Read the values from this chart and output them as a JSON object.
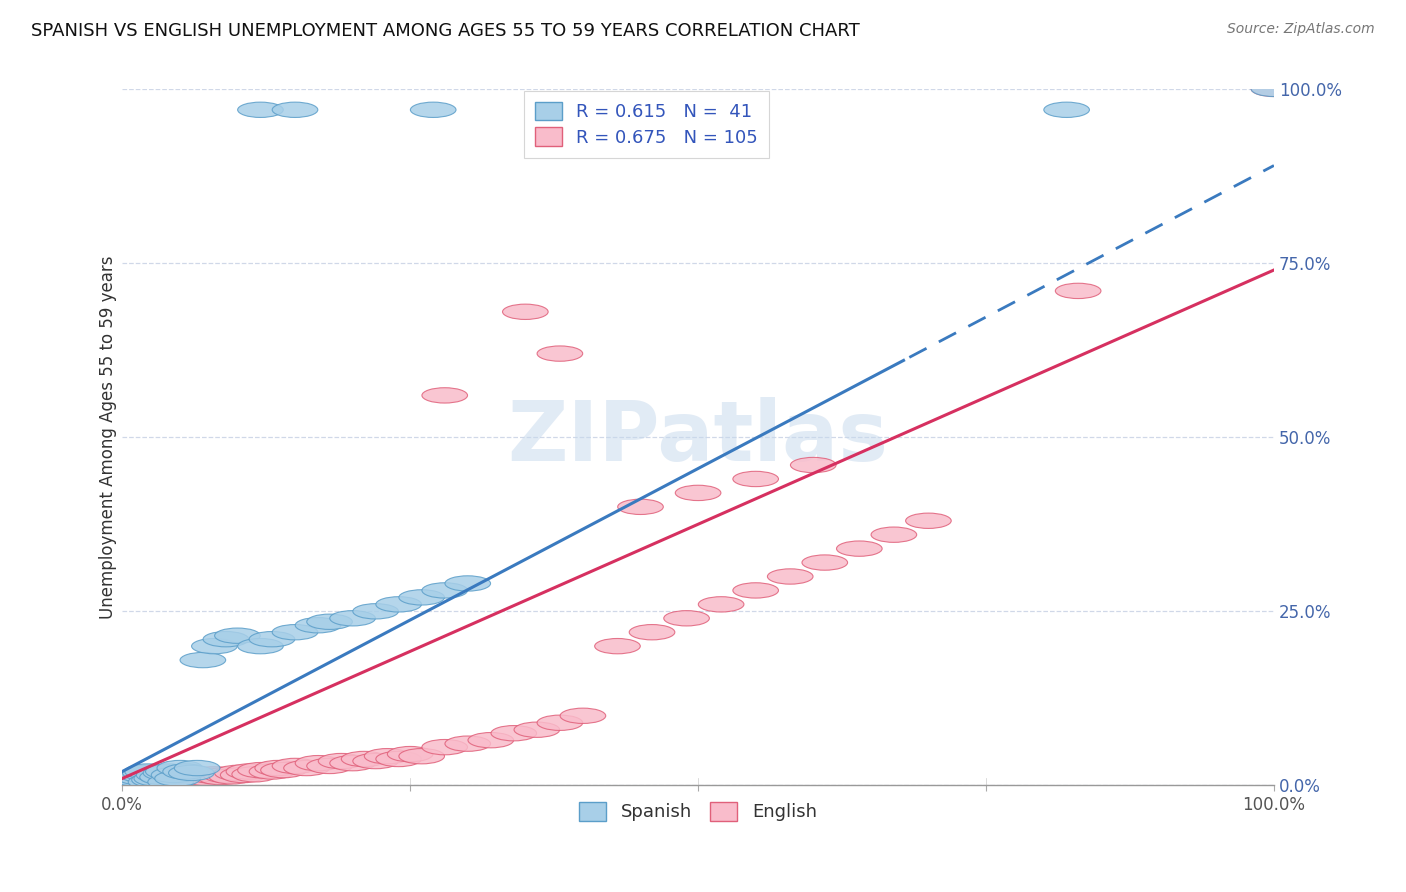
{
  "title": "SPANISH VS ENGLISH UNEMPLOYMENT AMONG AGES 55 TO 59 YEARS CORRELATION CHART",
  "source": "Source: ZipAtlas.com",
  "ylabel": "Unemployment Among Ages 55 to 59 years",
  "ytick_labels": [
    "0.0%",
    "25.0%",
    "50.0%",
    "75.0%",
    "100.0%"
  ],
  "ytick_positions": [
    0,
    0.25,
    0.5,
    0.75,
    1.0
  ],
  "xlim": [
    0,
    1.0
  ],
  "ylim": [
    0,
    1.0
  ],
  "spanish_R": 0.615,
  "spanish_N": 41,
  "english_R": 0.675,
  "english_N": 105,
  "spanish_color": "#a8cfe8",
  "english_color": "#f9bccb",
  "spanish_edge_color": "#5b9ec9",
  "english_edge_color": "#e0607a",
  "spanish_line_color": "#3a7abf",
  "english_line_color": "#d63060",
  "watermark_text": "ZIPatlas",
  "background_color": "#ffffff",
  "grid_color": "#d0d8e8",
  "spanish_line_slope": 0.87,
  "spanish_line_intercept": 0.02,
  "english_line_slope": 0.73,
  "english_line_intercept": 0.01,
  "spanish_dash_cutoff": 0.68,
  "spanish_scatter_x": [
    0.005,
    0.01,
    0.012,
    0.015,
    0.018,
    0.02,
    0.022,
    0.025,
    0.028,
    0.03,
    0.032,
    0.035,
    0.038,
    0.04,
    0.042,
    0.045,
    0.048,
    0.05,
    0.055,
    0.06,
    0.065,
    0.07,
    0.08,
    0.09,
    0.1,
    0.12,
    0.13,
    0.15,
    0.17,
    0.18,
    0.2,
    0.22,
    0.24,
    0.26,
    0.28,
    0.3,
    0.12,
    0.15,
    0.27,
    0.82,
    1.0
  ],
  "spanish_scatter_y": [
    0.005,
    0.008,
    0.01,
    0.012,
    0.015,
    0.018,
    0.02,
    0.005,
    0.008,
    0.01,
    0.015,
    0.012,
    0.018,
    0.02,
    0.005,
    0.015,
    0.01,
    0.025,
    0.02,
    0.018,
    0.025,
    0.18,
    0.2,
    0.21,
    0.215,
    0.2,
    0.21,
    0.22,
    0.23,
    0.235,
    0.24,
    0.25,
    0.26,
    0.27,
    0.28,
    0.29,
    0.97,
    0.97,
    0.97,
    0.97,
    1.0
  ],
  "english_scatter_x": [
    0.002,
    0.004,
    0.005,
    0.006,
    0.008,
    0.009,
    0.01,
    0.011,
    0.012,
    0.013,
    0.014,
    0.015,
    0.016,
    0.017,
    0.018,
    0.019,
    0.02,
    0.021,
    0.022,
    0.023,
    0.024,
    0.025,
    0.026,
    0.027,
    0.028,
    0.029,
    0.03,
    0.032,
    0.033,
    0.034,
    0.035,
    0.036,
    0.038,
    0.039,
    0.04,
    0.041,
    0.042,
    0.043,
    0.045,
    0.046,
    0.048,
    0.05,
    0.052,
    0.054,
    0.055,
    0.058,
    0.06,
    0.062,
    0.064,
    0.066,
    0.068,
    0.07,
    0.072,
    0.075,
    0.078,
    0.08,
    0.085,
    0.09,
    0.095,
    0.1,
    0.105,
    0.11,
    0.115,
    0.12,
    0.13,
    0.135,
    0.14,
    0.15,
    0.16,
    0.17,
    0.18,
    0.19,
    0.2,
    0.21,
    0.22,
    0.23,
    0.24,
    0.25,
    0.26,
    0.28,
    0.3,
    0.32,
    0.34,
    0.36,
    0.38,
    0.4,
    0.43,
    0.46,
    0.49,
    0.52,
    0.55,
    0.58,
    0.61,
    0.64,
    0.67,
    0.7,
    0.45,
    0.5,
    0.55,
    0.6,
    0.38,
    0.28,
    0.35,
    0.83,
    1.0
  ],
  "english_scatter_y": [
    0.004,
    0.006,
    0.005,
    0.008,
    0.004,
    0.006,
    0.008,
    0.005,
    0.006,
    0.01,
    0.004,
    0.006,
    0.008,
    0.005,
    0.01,
    0.004,
    0.006,
    0.008,
    0.005,
    0.01,
    0.006,
    0.008,
    0.005,
    0.01,
    0.012,
    0.006,
    0.008,
    0.01,
    0.005,
    0.012,
    0.008,
    0.01,
    0.006,
    0.012,
    0.008,
    0.01,
    0.006,
    0.012,
    0.01,
    0.014,
    0.008,
    0.012,
    0.01,
    0.014,
    0.012,
    0.01,
    0.014,
    0.012,
    0.015,
    0.01,
    0.014,
    0.012,
    0.015,
    0.01,
    0.014,
    0.016,
    0.012,
    0.015,
    0.013,
    0.018,
    0.015,
    0.02,
    0.016,
    0.022,
    0.02,
    0.025,
    0.022,
    0.028,
    0.025,
    0.032,
    0.028,
    0.035,
    0.032,
    0.038,
    0.035,
    0.042,
    0.038,
    0.045,
    0.042,
    0.055,
    0.06,
    0.065,
    0.075,
    0.08,
    0.09,
    0.1,
    0.2,
    0.22,
    0.24,
    0.26,
    0.28,
    0.3,
    0.32,
    0.34,
    0.36,
    0.38,
    0.4,
    0.42,
    0.44,
    0.46,
    0.62,
    0.56,
    0.68,
    0.71,
    1.0
  ]
}
